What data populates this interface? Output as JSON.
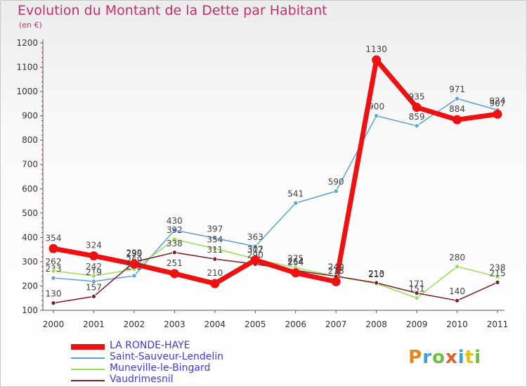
{
  "title": "Evolution du Montant de la Dette par Habitant",
  "subtitle": "(en €)",
  "brand": "Proxiti",
  "chart_data": {
    "type": "line",
    "x": [
      "2000",
      "2001",
      "2002",
      "2003",
      "2004",
      "2005",
      "2006",
      "2007",
      "2008",
      "2009",
      "2010",
      "2011"
    ],
    "ylim": [
      100,
      1200
    ],
    "yticks": [
      100,
      200,
      300,
      400,
      500,
      600,
      700,
      800,
      900,
      1000,
      1100,
      1200
    ],
    "grid": false,
    "legend_position": "bottom-left",
    "series": [
      {
        "name": "LA RONDE-HAYE",
        "color": "#ee1111",
        "width": 7,
        "values": [
          354,
          324,
          290,
          251,
          210,
          307,
          254,
          218,
          1130,
          935,
          884,
          907
        ]
      },
      {
        "name": "Saint-Sauveur-Lendelin",
        "color": "#5fa0d4",
        "width": 1.5,
        "values": [
          233,
          219,
          242,
          430,
          397,
          363,
          541,
          590,
          900,
          859,
          971,
          924
        ]
      },
      {
        "name": "Muneville-le-Bingard",
        "color": "#99dd55",
        "width": 1.5,
        "values": [
          262,
          242,
          269,
          392,
          354,
          312,
          275,
          240,
          210,
          151,
          280,
          238
        ]
      },
      {
        "name": "Vaudrimesnil",
        "color": "#7a1f2a",
        "width": 1.5,
        "values": [
          130,
          157,
          299,
          338,
          311,
          290,
          264,
          240,
          213,
          171,
          140,
          215
        ]
      }
    ]
  }
}
